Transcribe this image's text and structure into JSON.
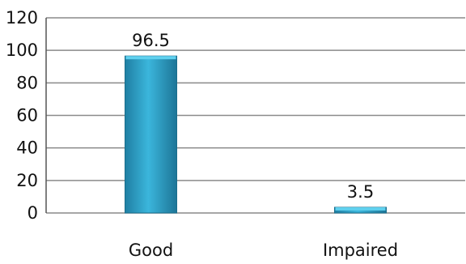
{
  "chart_data": {
    "type": "bar",
    "categories": [
      "Good",
      "Impaired"
    ],
    "values": [
      96.5,
      3.5
    ],
    "data_labels": [
      "96.5",
      "3.5"
    ],
    "ylim": [
      0,
      120
    ],
    "yticks": [
      "0",
      "20",
      "40",
      "60",
      "80",
      "100",
      "120"
    ],
    "grid": true,
    "title": "",
    "xlabel": "",
    "ylabel": "",
    "colors": {
      "bar_top": "#5fd0ee",
      "bar_body": "#2a9fc3",
      "bar_dark": "#1b6e8c",
      "grid": "#8a8a8a",
      "axis": "#555555"
    }
  }
}
